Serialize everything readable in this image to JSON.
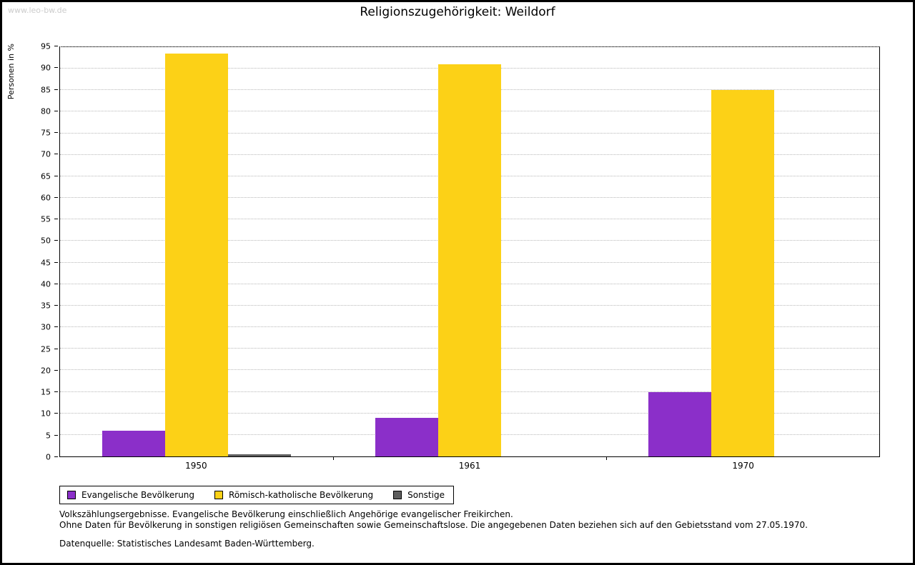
{
  "page": {
    "watermark": "www.leo-bw.de",
    "title": "Religionszugehörigkeit: Weildorf"
  },
  "chart_data": {
    "type": "bar",
    "title": "Religionszugehörigkeit: Weildorf",
    "xlabel": "",
    "ylabel": "Personen in %",
    "ylim": [
      0,
      95
    ],
    "ytick_step": 5,
    "grid": true,
    "legend_position": "bottom-left",
    "categories": [
      "1950",
      "1961",
      "1970"
    ],
    "series": [
      {
        "name": "Evangelische Bevölkerung",
        "color": "#8b2fc9",
        "values": [
          6,
          9,
          15
        ]
      },
      {
        "name": "Römisch-katholische Bevölkerung",
        "color": "#fcd117",
        "values": [
          93.5,
          91,
          85
        ]
      },
      {
        "name": "Sonstige",
        "color": "#5e5e5e",
        "values": [
          0.5,
          0,
          0
        ]
      }
    ]
  },
  "footer": {
    "line1": "Volkszählungsergebnisse. Evangelische Bevölkerung einschließlich Angehörige evangelischer Freikirchen.",
    "line2": "Ohne Daten für Bevölkerung in sonstigen religiösen Gemeinschaften sowie Gemeinschaftslose. Die angegebenen Daten beziehen sich auf den Gebietsstand vom 27.05.1970.",
    "line3": "Datenquelle: Statistisches Landesamt Baden-Württemberg."
  }
}
